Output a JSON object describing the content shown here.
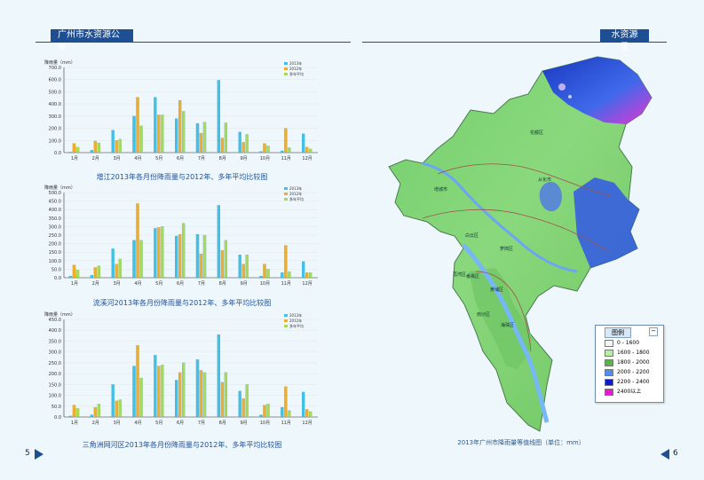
{
  "header": {
    "left_title": "广州市水资源公报",
    "right_title": "水资源量"
  },
  "page_numbers": {
    "left": "5",
    "right": "6"
  },
  "charts": {
    "zengjiang": {
      "caption": "增江2013年各月份降雨量与2012年、多年平均比较图"
    },
    "liuxihe": {
      "caption": "流溪河2013年各月份降雨量与2012年、多年平均比较图"
    },
    "sanjiaozhou": {
      "caption": "三角洲网河区2013年各月份降雨量与2012年、多年平均比较图"
    },
    "shared": {
      "ylabel": "降雨量（mm）",
      "series_names": [
        "2013年",
        "2012年",
        "多年平均"
      ],
      "months": [
        "1月",
        "2月",
        "3月",
        "4月",
        "5月",
        "6月",
        "7月",
        "8月",
        "9月",
        "10月",
        "11月",
        "12月"
      ]
    }
  },
  "chart_data": [
    {
      "type": "bar",
      "title": "增江2013年各月份降雨量与2012年、多年平均比较图",
      "categories": [
        "1月",
        "2月",
        "3月",
        "4月",
        "5月",
        "6月",
        "7月",
        "8月",
        "9月",
        "10月",
        "11月",
        "12月"
      ],
      "series": [
        {
          "name": "2013年",
          "values": [
            5,
            20,
            185,
            300,
            455,
            280,
            240,
            595,
            170,
            10,
            15,
            155
          ]
        },
        {
          "name": "2012年",
          "values": [
            75,
            95,
            100,
            455,
            310,
            430,
            160,
            120,
            85,
            75,
            200,
            45
          ]
        },
        {
          "name": "多年平均",
          "values": [
            45,
            80,
            110,
            220,
            310,
            340,
            250,
            245,
            150,
            55,
            40,
            30
          ]
        }
      ],
      "ylim": [
        0,
        700
      ],
      "yticks": [
        "0.0",
        "100.0",
        "200.0",
        "300.0",
        "400.0",
        "500.0",
        "600.0",
        "700.0"
      ],
      "ylabel": "降雨量（mm）"
    },
    {
      "type": "bar",
      "title": "流溪河2013年各月份降雨量与2012年、多年平均比较图",
      "categories": [
        "1月",
        "2月",
        "3月",
        "4月",
        "5月",
        "6月",
        "7月",
        "8月",
        "9月",
        "10月",
        "11月",
        "12月"
      ],
      "series": [
        {
          "name": "2013年",
          "values": [
            10,
            15,
            170,
            220,
            290,
            245,
            255,
            425,
            135,
            10,
            30,
            95
          ]
        },
        {
          "name": "2012年",
          "values": [
            75,
            60,
            80,
            435,
            295,
            255,
            140,
            160,
            80,
            80,
            190,
            30
          ]
        },
        {
          "name": "多年平均",
          "values": [
            45,
            70,
            110,
            220,
            300,
            320,
            250,
            220,
            135,
            50,
            35,
            30
          ]
        }
      ],
      "ylim": [
        0,
        500
      ],
      "yticks": [
        "0.0",
        "50.0",
        "100.0",
        "150.0",
        "200.0",
        "250.0",
        "300.0",
        "350.0",
        "400.0",
        "450.0",
        "500.0"
      ],
      "ylabel": "降雨量（mm）"
    },
    {
      "type": "bar",
      "title": "三角洲网河区2013年各月份降雨量与2012年、多年平均比较图",
      "categories": [
        "1月",
        "2月",
        "3月",
        "4月",
        "5月",
        "6月",
        "7月",
        "8月",
        "9月",
        "10月",
        "11月",
        "12月"
      ],
      "series": [
        {
          "name": "2013年",
          "values": [
            5,
            10,
            150,
            235,
            285,
            170,
            265,
            380,
            120,
            10,
            45,
            115
          ]
        },
        {
          "name": "2012年",
          "values": [
            55,
            45,
            75,
            330,
            235,
            205,
            215,
            160,
            85,
            55,
            140,
            35
          ]
        },
        {
          "name": "多年平均",
          "values": [
            40,
            60,
            80,
            180,
            240,
            250,
            205,
            205,
            150,
            60,
            30,
            25
          ]
        }
      ],
      "ylim": [
        0,
        450
      ],
      "yticks": [
        "0.0",
        "50.0",
        "100.0",
        "150.0",
        "200.0",
        "250.0",
        "300.0",
        "350.0",
        "400.0",
        "450.0"
      ],
      "ylabel": "降雨量（mm）"
    }
  ],
  "map": {
    "caption": "2013年广州市降雨量等值线图（单位：mm）",
    "legend_title": "图例",
    "legend_items": [
      {
        "label": "0 - 1600",
        "color": "#f5f5f5"
      },
      {
        "label": "1600 - 1800",
        "color": "#b7ee9f"
      },
      {
        "label": "1800 - 2000",
        "color": "#57b54a"
      },
      {
        "label": "2000 - 2200",
        "color": "#4f8ee9"
      },
      {
        "label": "2200 - 2400",
        "color": "#0d1cc9"
      },
      {
        "label": "2400以上",
        "color": "#ea18d3"
      }
    ],
    "labels": [
      "花都区",
      "从化市",
      "增城市",
      "白云区",
      "萝岗区",
      "番禺区",
      "南沙区",
      "黄埔区",
      "荔湾区",
      "海珠区"
    ]
  }
}
